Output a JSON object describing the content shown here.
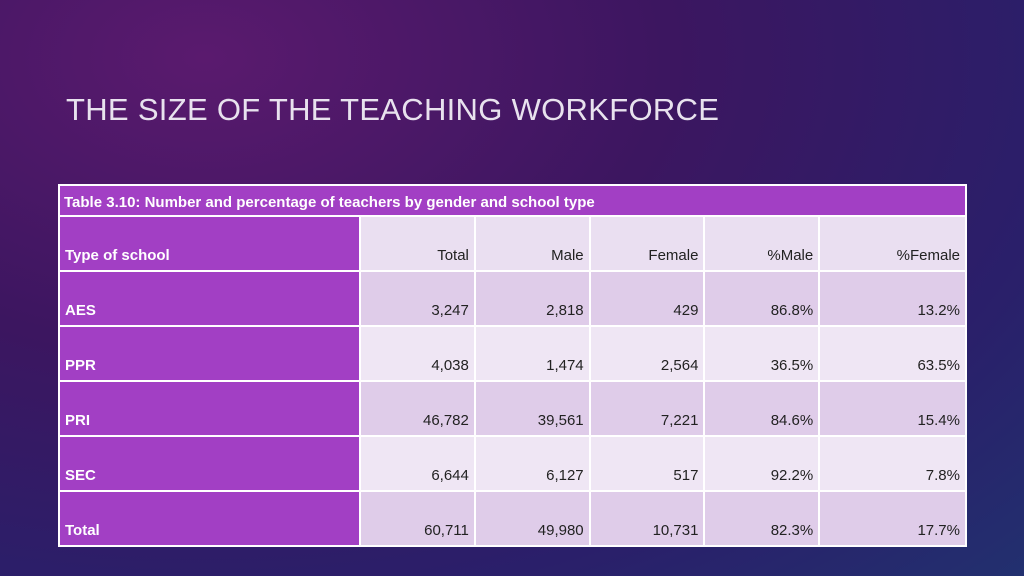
{
  "header": {
    "title": "THE SIZE OF THE TEACHING WORKFORCE"
  },
  "table": {
    "caption": "Table 3.10: Number and percentage of teachers by gender and school type",
    "columns": [
      "Type of school",
      "Total",
      "Male",
      "Female",
      "%Male",
      "%Female"
    ],
    "rows": [
      [
        "AES",
        "3,247",
        "2,818",
        "429",
        "86.8%",
        "13.2%"
      ],
      [
        "PPR",
        "4,038",
        "1,474",
        "2,564",
        "36.5%",
        "63.5%"
      ],
      [
        "PRI",
        "46,782",
        "39,561",
        "7,221",
        "84.6%",
        "15.4%"
      ],
      [
        "SEC",
        "6,644",
        "6,127",
        "517",
        "92.2%",
        "7.8%"
      ],
      [
        "Total",
        "60,711",
        "49,980",
        "10,731",
        "82.3%",
        "17.7%"
      ]
    ]
  }
}
